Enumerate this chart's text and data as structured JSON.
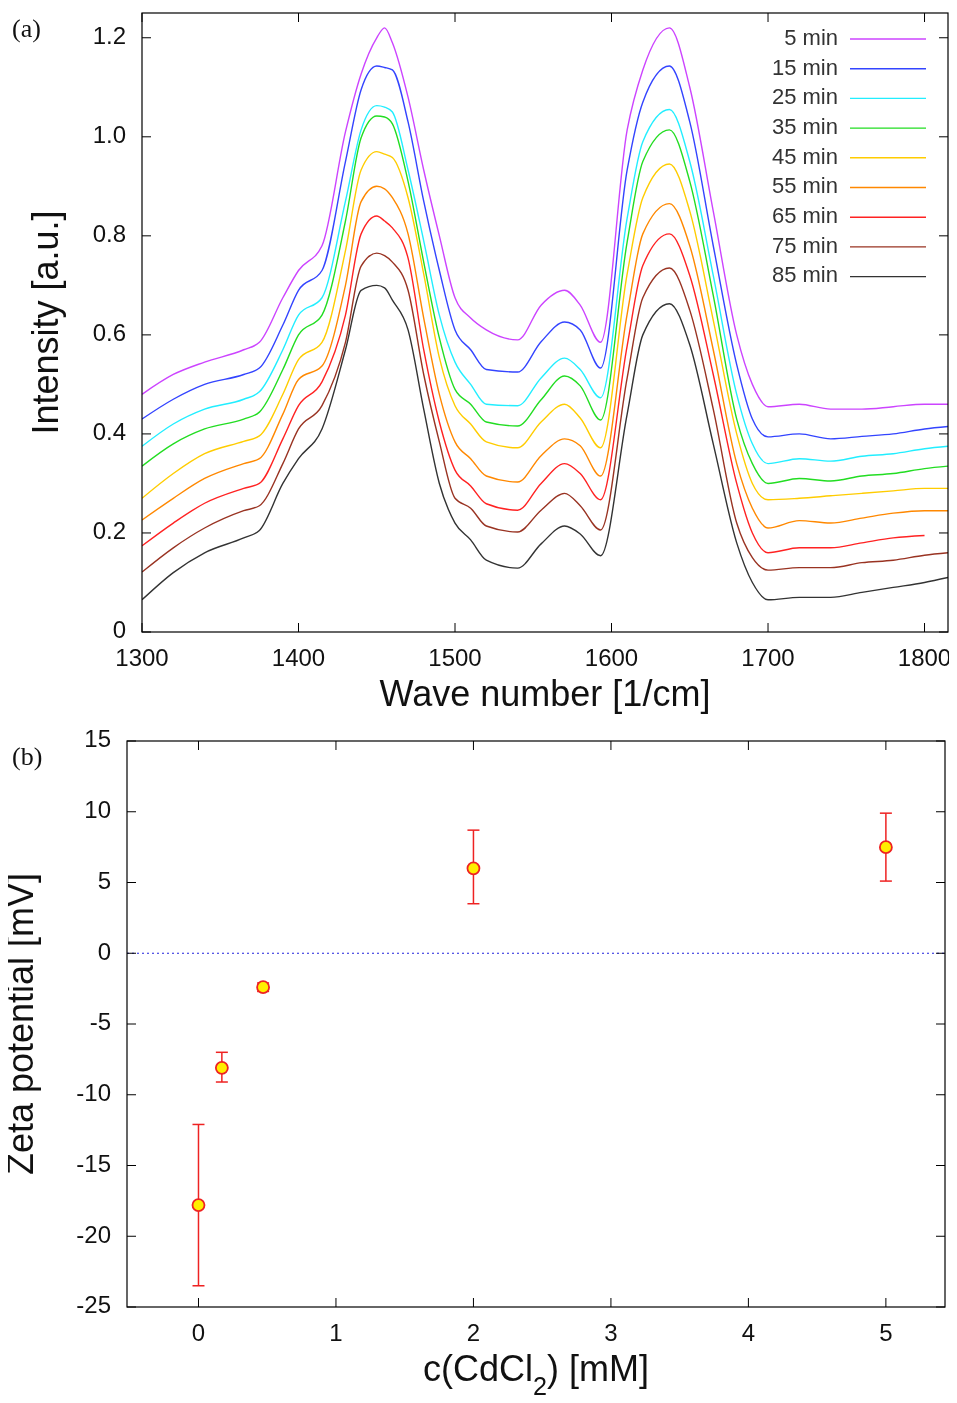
{
  "chart_data": [
    {
      "type": "line",
      "annotations": [
        "(a)"
      ],
      "xlabel": "Wave number [1/cm]",
      "ylabel": "Intensity [a.u.]",
      "legend": "top right",
      "line_style": "solid",
      "x": [
        1300,
        1320,
        1340,
        1365,
        1375,
        1390,
        1400,
        1415,
        1430,
        1440,
        1450,
        1455,
        1460,
        1470,
        1480,
        1490,
        1500,
        1510,
        1520,
        1540,
        1555,
        1570,
        1580,
        1593,
        1610,
        1620,
        1637,
        1650,
        1665,
        1680,
        1690,
        1700,
        1720,
        1740,
        1760,
        1780,
        1800,
        1815
      ],
      "xlim": [
        1300,
        1815
      ],
      "xticks": [
        1300,
        1400,
        1500,
        1600,
        1700,
        1800
      ],
      "ylim": [
        0,
        1.25
      ],
      "yticks": [
        0,
        0.2,
        0.4,
        0.6,
        0.8,
        {
          "value": 1,
          "label": "1.0"
        },
        1.2
      ],
      "series": [
        {
          "name": "5 min",
          "color": "#cc44ff",
          "values": [
            0.48,
            0.52,
            0.545,
            0.57,
            0.585,
            0.675,
            0.73,
            0.78,
            1.01,
            1.127,
            1.2,
            1.22,
            1.19,
            1.08,
            0.933,
            0.8,
            0.675,
            0.634,
            0.61,
            0.59,
            0.66,
            0.69,
            0.66,
            0.585,
            1.014,
            1.135,
            1.22,
            1.1,
            0.85,
            0.6,
            0.5,
            0.455,
            0.46,
            0.45,
            0.45,
            0.455,
            0.46,
            0.46
          ]
        },
        {
          "name": "15 min",
          "color": "#3344ff",
          "values": [
            0.43,
            0.47,
            0.5,
            0.52,
            0.533,
            0.62,
            0.69,
            0.73,
            0.95,
            1.095,
            1.143,
            1.14,
            1.135,
            1.03,
            0.87,
            0.73,
            0.61,
            0.57,
            0.53,
            0.525,
            0.586,
            0.626,
            0.61,
            0.533,
            0.933,
            1.07,
            1.143,
            1.03,
            0.78,
            0.54,
            0.43,
            0.394,
            0.4,
            0.39,
            0.395,
            0.4,
            0.41,
            0.415
          ]
        },
        {
          "name": "25 min",
          "color": "#22eeff",
          "values": [
            0.375,
            0.42,
            0.45,
            0.47,
            0.485,
            0.57,
            0.64,
            0.675,
            0.87,
            1.014,
            1.063,
            1.06,
            1.05,
            0.933,
            0.79,
            0.64,
            0.545,
            0.5,
            0.46,
            0.457,
            0.513,
            0.553,
            0.53,
            0.473,
            0.836,
            0.99,
            1.055,
            0.95,
            0.72,
            0.48,
            0.38,
            0.34,
            0.35,
            0.345,
            0.355,
            0.36,
            0.37,
            0.375
          ]
        },
        {
          "name": "35 min",
          "color": "#22dd22",
          "values": [
            0.335,
            0.38,
            0.41,
            0.43,
            0.444,
            0.53,
            0.6,
            0.64,
            0.83,
            0.998,
            1.042,
            1.04,
            1.026,
            0.91,
            0.747,
            0.594,
            0.49,
            0.46,
            0.424,
            0.416,
            0.469,
            0.517,
            0.497,
            0.428,
            0.788,
            0.95,
            1.014,
            0.91,
            0.68,
            0.43,
            0.34,
            0.3,
            0.31,
            0.305,
            0.315,
            0.32,
            0.33,
            0.335
          ]
        },
        {
          "name": "45 min",
          "color": "#ffcc00",
          "values": [
            0.27,
            0.32,
            0.36,
            0.385,
            0.396,
            0.48,
            0.55,
            0.585,
            0.77,
            0.933,
            0.97,
            0.965,
            0.958,
            0.877,
            0.723,
            0.554,
            0.457,
            0.42,
            0.384,
            0.372,
            0.424,
            0.46,
            0.432,
            0.372,
            0.723,
            0.877,
            0.945,
            0.85,
            0.63,
            0.4,
            0.3,
            0.267,
            0.27,
            0.275,
            0.28,
            0.285,
            0.29,
            0.29
          ]
        },
        {
          "name": "55 min",
          "color": "#ff8800",
          "values": [
            0.226,
            0.27,
            0.31,
            0.34,
            0.35,
            0.44,
            0.51,
            0.537,
            0.7,
            0.869,
            0.9,
            0.895,
            0.877,
            0.804,
            0.634,
            0.48,
            0.384,
            0.35,
            0.315,
            0.303,
            0.356,
            0.39,
            0.376,
            0.315,
            0.642,
            0.804,
            0.865,
            0.78,
            0.57,
            0.34,
            0.25,
            0.21,
            0.225,
            0.22,
            0.23,
            0.24,
            0.245,
            0.245
          ]
        },
        {
          "name": "65 min",
          "color": "#ff2222",
          "values": [
            0.174,
            0.22,
            0.26,
            0.29,
            0.3,
            0.39,
            0.457,
            0.505,
            0.64,
            0.804,
            0.84,
            0.83,
            0.816,
            0.755,
            0.57,
            0.424,
            0.327,
            0.295,
            0.259,
            0.246,
            0.3,
            0.34,
            0.32,
            0.267,
            0.578,
            0.74,
            0.804,
            0.72,
            0.52,
            0.3,
            0.2,
            0.16,
            0.17,
            0.17,
            0.18,
            0.19,
            0.195,
            null
          ]
        },
        {
          "name": "75 min",
          "color": "#993322",
          "values": [
            0.121,
            0.17,
            0.21,
            0.245,
            0.255,
            0.34,
            0.41,
            0.457,
            0.585,
            0.739,
            0.765,
            0.76,
            0.747,
            0.69,
            0.52,
            0.384,
            0.27,
            0.25,
            0.214,
            0.202,
            0.246,
            0.28,
            0.255,
            0.206,
            0.513,
            0.675,
            0.735,
            0.65,
            0.45,
            0.22,
            0.15,
            0.125,
            0.13,
            0.13,
            0.14,
            0.145,
            0.155,
            0.16
          ]
        },
        {
          "name": "85 min",
          "color": "#333333",
          "values": [
            0.065,
            0.12,
            0.16,
            0.19,
            0.205,
            0.3,
            0.35,
            0.41,
            0.57,
            0.69,
            0.7,
            0.695,
            0.67,
            0.61,
            0.45,
            0.3,
            0.22,
            0.186,
            0.145,
            0.129,
            0.178,
            0.214,
            0.198,
            0.154,
            0.44,
            0.6,
            0.663,
            0.58,
            0.38,
            0.18,
            0.1,
            0.065,
            0.07,
            0.07,
            0.08,
            0.09,
            0.1,
            0.11
          ]
        }
      ]
    },
    {
      "type": "scatter",
      "annotations": [
        "(b)"
      ],
      "xlabel": "c(CdCl$_{2}$) [mM]",
      "ylabel": "Zeta potential [mV]",
      "marker": "circle",
      "color": "#ee2222",
      "x": [
        0,
        0.17,
        0.47,
        2,
        5
      ],
      "values": [
        -17.8,
        -8.1,
        -2.4,
        6.0,
        7.5
      ],
      "errors": [
        [
          -23.5,
          -12.1
        ],
        [
          -9.1,
          -7.0
        ],
        [
          -2.7,
          -2.1
        ],
        [
          3.5,
          8.7
        ],
        [
          5.1,
          9.9
        ]
      ],
      "xlim": [
        -0.52,
        5.43
      ],
      "xticks": [
        0,
        1,
        2,
        3,
        4,
        5
      ],
      "ylim": [
        -25,
        15
      ],
      "yticks": [
        -25,
        -20,
        -15,
        -10,
        -5,
        0,
        5,
        10,
        15
      ],
      "ref_lines": [
        {
          "axis": "y",
          "value": 0,
          "color": "#2222dd",
          "line_style": "dotted"
        }
      ]
    }
  ]
}
